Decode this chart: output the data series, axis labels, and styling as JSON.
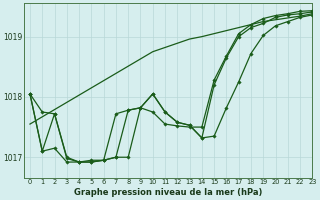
{
  "title": "Graphe pression niveau de la mer (hPa)",
  "background_color": "#d6eeee",
  "grid_color": "#b8d8d8",
  "line_color": "#1a5c1a",
  "xlim": [
    -0.5,
    23
  ],
  "ylim": [
    1016.65,
    1019.55
  ],
  "yticks": [
    1017,
    1018,
    1019
  ],
  "xticks": [
    0,
    1,
    2,
    3,
    4,
    5,
    6,
    7,
    8,
    9,
    10,
    11,
    12,
    13,
    14,
    15,
    16,
    17,
    18,
    19,
    20,
    21,
    22,
    23
  ],
  "line_straight": [
    1017.55,
    1017.67,
    1017.79,
    1017.91,
    1018.03,
    1018.15,
    1018.27,
    1018.39,
    1018.51,
    1018.63,
    1018.75,
    1018.82,
    1018.89,
    1018.96,
    1019.0,
    1019.05,
    1019.1,
    1019.15,
    1019.2,
    1019.25,
    1019.28,
    1019.31,
    1019.34,
    1019.38
  ],
  "line_wavy": [
    1018.05,
    1017.75,
    1017.72,
    1016.98,
    1016.92,
    1016.92,
    1016.95,
    1017.0,
    1017.78,
    1017.82,
    1018.05,
    1017.75,
    1017.58,
    1017.53,
    1017.32,
    1017.35,
    1017.82,
    1018.25,
    1018.72,
    1019.02,
    1019.18,
    1019.25,
    1019.32,
    1019.36
  ],
  "line_wavy2": [
    1018.05,
    1017.1,
    1017.72,
    1017.0,
    1016.92,
    1016.92,
    1016.95,
    1017.72,
    1017.78,
    1017.82,
    1018.05,
    1017.75,
    1017.58,
    1017.53,
    1017.32,
    1018.2,
    1018.65,
    1019.0,
    1019.15,
    1019.22,
    1019.32,
    1019.36,
    1019.38,
    1019.41
  ],
  "line_wavy3": [
    1018.05,
    1017.1,
    1017.15,
    1016.92,
    1016.92,
    1016.95,
    1016.95,
    1017.0,
    1017.0,
    1017.82,
    1017.75,
    1017.55,
    1017.52,
    1017.5,
    1017.5,
    1018.28,
    1018.68,
    1019.05,
    1019.2,
    1019.3,
    1019.35,
    1019.38,
    1019.42,
    1019.43
  ]
}
